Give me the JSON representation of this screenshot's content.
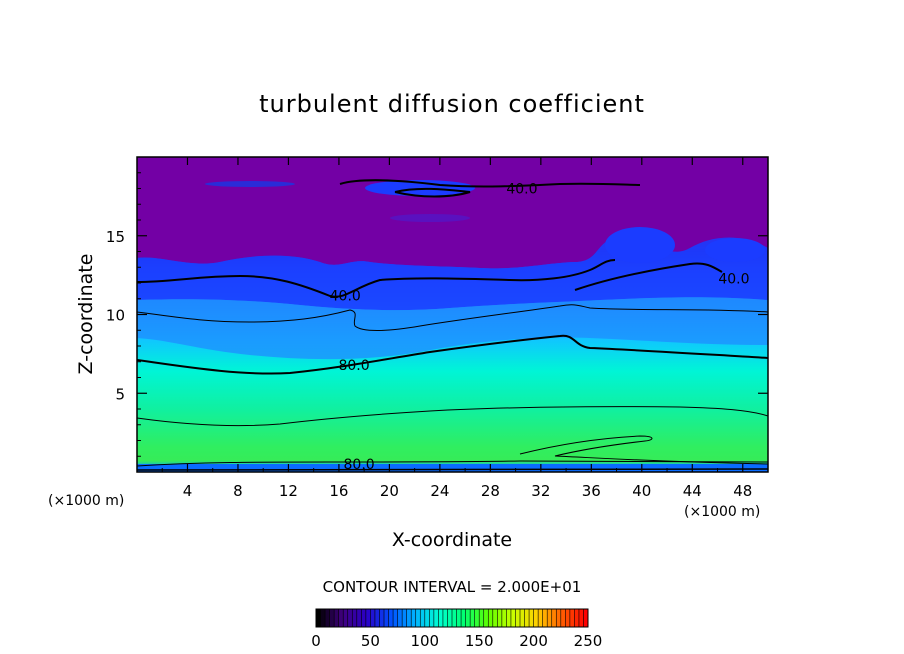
{
  "chart_data": {
    "type": "contour",
    "title": "turbulent diffusion coefficient",
    "xlabel": "X-coordinate",
    "ylabel": "Z-coordinate",
    "x_unit_left": "(×1000 m)",
    "x_unit_right": "(×1000 m)",
    "xlim": [
      0,
      50
    ],
    "ylim": [
      0,
      20
    ],
    "x_ticks": [
      4,
      8,
      12,
      16,
      20,
      24,
      28,
      32,
      36,
      40,
      44,
      48
    ],
    "y_ticks": [
      5,
      10,
      15
    ],
    "contour_interval_text": "CONTOUR INTERVAL = 2.000E+01",
    "contour_labels": [
      {
        "text": "40.0",
        "x": 30.5,
        "z": 18.0
      },
      {
        "text": "40.0",
        "x": 16.5,
        "z": 11.2
      },
      {
        "text": "40.0",
        "x": 47.3,
        "z": 12.3
      },
      {
        "text": "80.0",
        "x": 17.2,
        "z": 6.8
      },
      {
        "text": "80.0",
        "x": 17.6,
        "z": 0.5
      }
    ],
    "colorbar": {
      "min": 0,
      "max": 250,
      "tick_labels": [
        "0",
        "50",
        "100",
        "150",
        "200",
        "250"
      ],
      "tick_values": [
        0,
        50,
        100,
        150,
        200,
        250
      ],
      "colors": [
        "#000000",
        "#3f007f",
        "#2a00c8",
        "#0050ff",
        "#00b4ff",
        "#00ffd0",
        "#00ff70",
        "#60ff00",
        "#c8ff00",
        "#ffd000",
        "#ff6000",
        "#ff0000"
      ]
    },
    "fill_colors": {
      "top": "#7300a5",
      "upper_blue": "#1b3cff",
      "mid_blue": "#1f8cff",
      "cyan": "#00f5d6",
      "green_cyan": "#10f0a0",
      "green": "#2aee64",
      "bottom_blue": "#0a6cff"
    }
  }
}
